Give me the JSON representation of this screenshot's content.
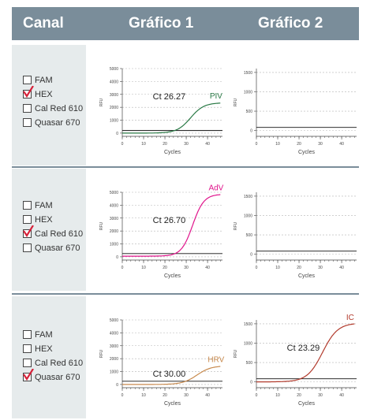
{
  "header": {
    "col_canal": "Canal",
    "col_chart1": "Gráfico 1",
    "col_chart2": "Gráfico 2"
  },
  "rows": [
    {
      "channels": [
        {
          "label": "FAM",
          "checked": false
        },
        {
          "label": "HEX",
          "checked": true
        },
        {
          "label": "Cal Red 610",
          "checked": false
        },
        {
          "label": "Quasar 670",
          "checked": false
        }
      ]
    },
    {
      "channels": [
        {
          "label": "FAM",
          "checked": false
        },
        {
          "label": "HEX",
          "checked": false
        },
        {
          "label": "Cal Red 610",
          "checked": true
        },
        {
          "label": "Quasar 670",
          "checked": false
        }
      ]
    },
    {
      "channels": [
        {
          "label": "FAM",
          "checked": false
        },
        {
          "label": "HEX",
          "checked": false
        },
        {
          "label": "Cal Red 610",
          "checked": false
        },
        {
          "label": "Quasar 670",
          "checked": true
        }
      ]
    }
  ],
  "colors": {
    "header_bg": "#7a8d9a",
    "panel_bg": "#e6ebec",
    "check_mark": "#d6223a"
  },
  "chart_data": [
    {
      "type": "line",
      "row": 0,
      "col": 1,
      "xlabel": "Cycles",
      "ylabel": "RFU",
      "xlim": [
        0,
        47
      ],
      "ylim": [
        -250,
        5000
      ],
      "xticks": [
        0,
        10,
        20,
        30,
        40
      ],
      "yticks": [
        0,
        1000,
        2000,
        3000,
        4000,
        5000
      ],
      "threshold": 200,
      "series": [
        {
          "name": "PIV",
          "color": "#2a7a46",
          "baseline": 0,
          "plateau": 2350,
          "midpoint": 32,
          "steepness": 0.32
        }
      ],
      "annotations": [
        {
          "text": "Ct 26.27"
        }
      ]
    },
    {
      "type": "line",
      "row": 0,
      "col": 2,
      "xlabel": "Cycles",
      "ylabel": "RFU",
      "xlim": [
        0,
        47
      ],
      "ylim": [
        -150,
        1600
      ],
      "xticks": [
        0,
        10,
        20,
        30,
        40
      ],
      "yticks": [
        0,
        500,
        1000,
        1500
      ],
      "threshold": 80,
      "series": [],
      "annotations": []
    },
    {
      "type": "line",
      "row": 1,
      "col": 1,
      "xlabel": "Cycles",
      "ylabel": "RFU",
      "xlim": [
        0,
        47
      ],
      "ylim": [
        -250,
        5000
      ],
      "xticks": [
        0,
        10,
        20,
        30,
        40
      ],
      "yticks": [
        0,
        1000,
        2000,
        3000,
        4000,
        5000
      ],
      "threshold": 250,
      "series": [
        {
          "name": "AdV",
          "color": "#e0158c",
          "baseline": 50,
          "plateau": 4850,
          "midpoint": 33,
          "steepness": 0.38
        }
      ],
      "annotations": [
        {
          "text": "Ct 26.70"
        }
      ]
    },
    {
      "type": "line",
      "row": 1,
      "col": 2,
      "xlabel": "Cycles",
      "ylabel": "RFU",
      "xlim": [
        0,
        47
      ],
      "ylim": [
        -150,
        1600
      ],
      "xticks": [
        0,
        10,
        20,
        30,
        40
      ],
      "yticks": [
        0,
        500,
        1000,
        1500
      ],
      "threshold": 80,
      "series": [],
      "annotations": []
    },
    {
      "type": "line",
      "row": 2,
      "col": 1,
      "xlabel": "Cycles",
      "ylabel": "RFU",
      "xlim": [
        0,
        47
      ],
      "ylim": [
        -250,
        5000
      ],
      "xticks": [
        0,
        10,
        20,
        30,
        40
      ],
      "yticks": [
        0,
        1000,
        2000,
        3000,
        4000,
        5000
      ],
      "threshold": 250,
      "series": [
        {
          "name": "HRV",
          "color": "#c88a4e",
          "baseline": 0,
          "plateau": 1450,
          "midpoint": 35,
          "steepness": 0.3
        }
      ],
      "annotations": [
        {
          "text": "Ct 30.00"
        }
      ]
    },
    {
      "type": "line",
      "row": 2,
      "col": 2,
      "xlabel": "Cycles",
      "ylabel": "RFU",
      "xlim": [
        0,
        47
      ],
      "ylim": [
        -150,
        1600
      ],
      "xticks": [
        0,
        10,
        20,
        30,
        40
      ],
      "yticks": [
        0,
        500,
        1000,
        1500
      ],
      "threshold": 80,
      "series": [
        {
          "name": "IC",
          "color": "#b23a2c",
          "baseline": 0,
          "plateau": 1520,
          "midpoint": 31,
          "steepness": 0.28
        }
      ],
      "annotations": [
        {
          "text": "Ct 23.29"
        }
      ]
    }
  ]
}
